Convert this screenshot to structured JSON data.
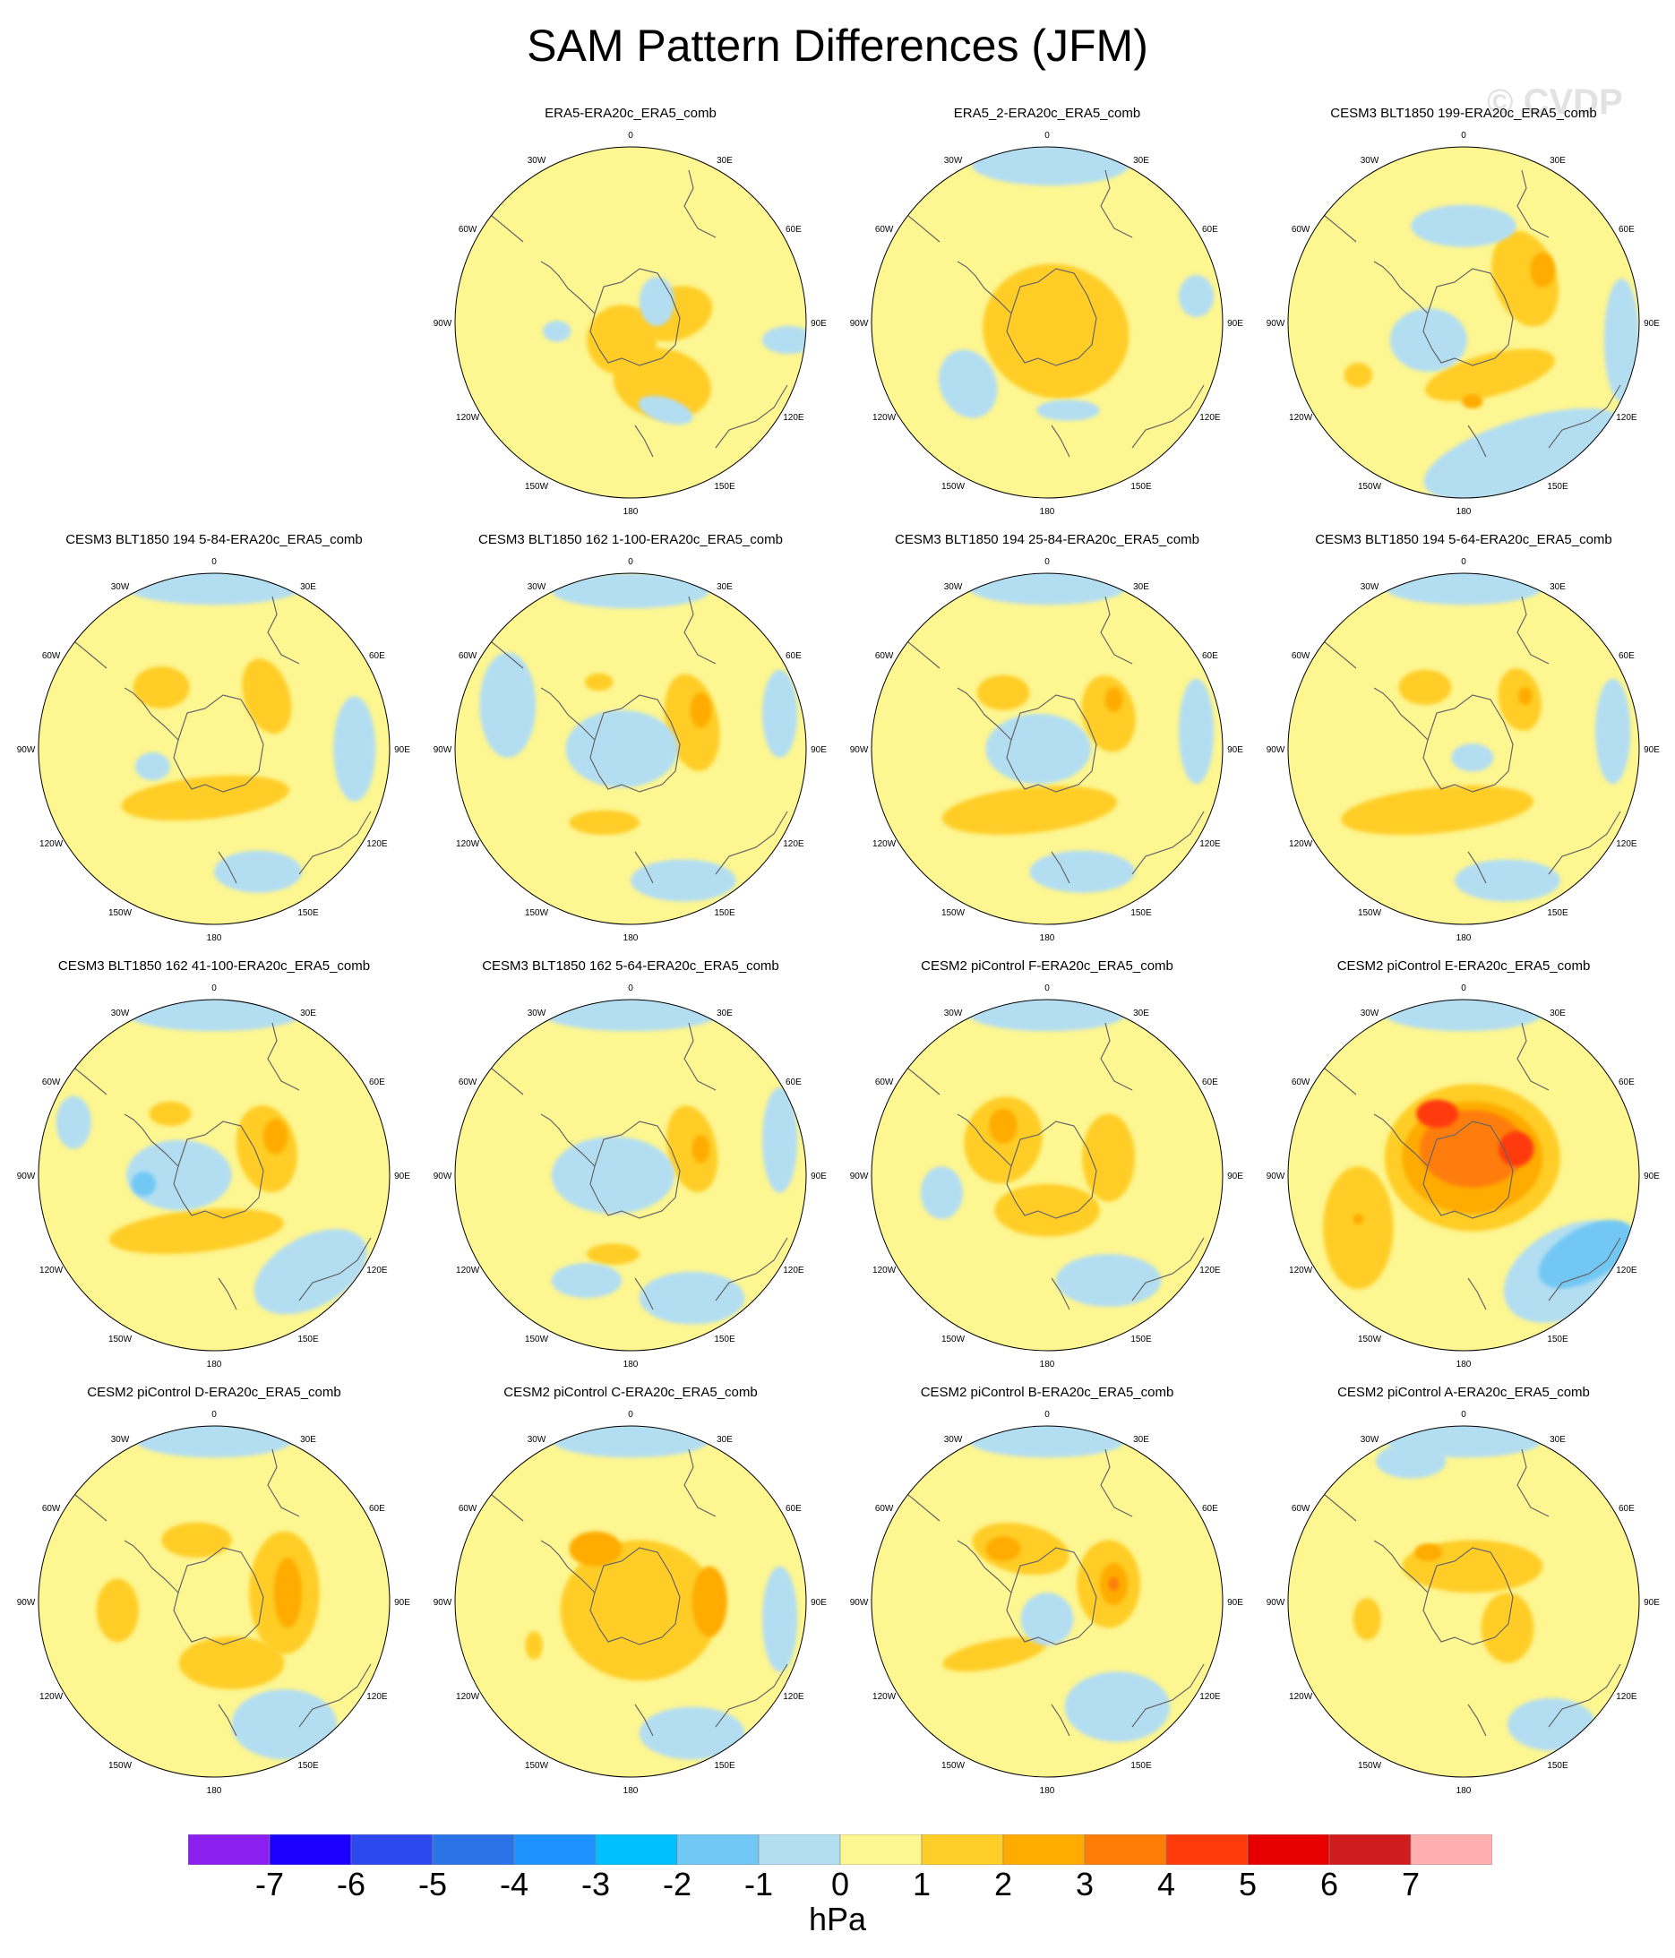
{
  "figure": {
    "title": "SAM Pattern Differences (JFM)",
    "watermark": "© CVDP",
    "units": "hPa"
  },
  "lon_labels": [
    "0",
    "30E",
    "60E",
    "90E",
    "120E",
    "150E",
    "180",
    "150W",
    "120W",
    "90W",
    "60W",
    "30W"
  ],
  "colorbar": {
    "colors": [
      "#8a1ff0",
      "#1b00ff",
      "#2d48ee",
      "#2b74e8",
      "#1e93ff",
      "#00c0ff",
      "#72c8f4",
      "#b3def2",
      "#fdf691",
      "#ffcd28",
      "#ffab00",
      "#ff7d07",
      "#ff3a0a",
      "#e60000",
      "#d01c1c",
      "#ffafaf"
    ],
    "labels": [
      "-7",
      "-6",
      "-5",
      "-4",
      "-3",
      "-2",
      "-1",
      "0",
      "1",
      "2",
      "3",
      "4",
      "5",
      "6",
      "7"
    ]
  },
  "panels": [
    {
      "title": "ERA5-ERA20c_ERA5_comb",
      "blobs": [
        [
          0.25,
          -0.05,
          0.22,
          0.15,
          -0.3,
          1
        ],
        [
          0.18,
          0.35,
          0.28,
          0.2,
          0.2,
          1
        ],
        [
          -0.05,
          0.1,
          0.2,
          0.2,
          0,
          1
        ],
        [
          0.15,
          -0.12,
          0.1,
          0.14,
          0,
          -1
        ],
        [
          -0.42,
          0.05,
          0.08,
          0.06,
          0,
          -1
        ],
        [
          0.2,
          0.5,
          0.16,
          0.07,
          0.3,
          -1
        ],
        [
          0.9,
          0.1,
          0.15,
          0.08,
          0,
          -1
        ]
      ]
    },
    {
      "title": "ERA5_2-ERA20c_ERA5_comb",
      "blobs": [
        [
          0.05,
          0.05,
          0.42,
          0.38,
          0.3,
          1
        ],
        [
          -0.45,
          0.35,
          0.16,
          0.2,
          -0.4,
          -1
        ],
        [
          0.12,
          0.5,
          0.18,
          0.06,
          0,
          -1
        ],
        [
          0.02,
          -0.9,
          0.45,
          0.12,
          0,
          -1
        ],
        [
          0.85,
          -0.15,
          0.1,
          0.12,
          0,
          -1
        ]
      ]
    },
    {
      "title": "CESM3 BLT1850 199-ERA20c_ERA5_comb",
      "blobs": [
        [
          0.35,
          -0.25,
          0.18,
          0.28,
          -0.3,
          1
        ],
        [
          0.45,
          -0.3,
          0.07,
          0.1,
          0,
          2
        ],
        [
          0.15,
          0.3,
          0.38,
          0.12,
          -0.25,
          1
        ],
        [
          0.05,
          0.45,
          0.06,
          0.04,
          0,
          2
        ],
        [
          -0.6,
          0.3,
          0.08,
          0.07,
          0,
          1
        ],
        [
          -0.2,
          0.1,
          0.22,
          0.18,
          0,
          -1
        ],
        [
          0.0,
          -0.55,
          0.3,
          0.12,
          0,
          -1
        ],
        [
          0.35,
          0.75,
          0.6,
          0.2,
          -0.3,
          -1
        ],
        [
          0.9,
          0.1,
          0.1,
          0.35,
          0,
          -1
        ]
      ]
    },
    {
      "title": "CESM3 BLT1850 194 5-84-ERA20c_ERA5_comb",
      "blobs": [
        [
          -0.3,
          -0.35,
          0.16,
          0.12,
          0,
          1
        ],
        [
          0.3,
          -0.3,
          0.13,
          0.22,
          -0.3,
          1
        ],
        [
          -0.05,
          0.28,
          0.48,
          0.12,
          -0.1,
          1
        ],
        [
          -0.35,
          0.1,
          0.1,
          0.08,
          0,
          -1
        ],
        [
          0.0,
          -0.92,
          0.5,
          0.1,
          0,
          -1
        ],
        [
          0.25,
          0.7,
          0.25,
          0.12,
          0,
          -1
        ],
        [
          0.8,
          0.0,
          0.12,
          0.3,
          0,
          -1
        ]
      ]
    },
    {
      "title": "CESM3 BLT1850 162 1-100-ERA20c_ERA5_comb",
      "blobs": [
        [
          0.35,
          -0.15,
          0.15,
          0.28,
          -0.2,
          1
        ],
        [
          0.4,
          -0.22,
          0.06,
          0.1,
          0,
          2
        ],
        [
          -0.18,
          -0.38,
          0.08,
          0.05,
          0,
          1
        ],
        [
          -0.15,
          0.42,
          0.2,
          0.07,
          0,
          1
        ],
        [
          -0.05,
          0.0,
          0.32,
          0.22,
          0,
          -1
        ],
        [
          0.0,
          -0.9,
          0.45,
          0.1,
          0,
          -1
        ],
        [
          -0.7,
          -0.25,
          0.16,
          0.3,
          0,
          -1
        ],
        [
          0.3,
          0.75,
          0.3,
          0.12,
          0,
          -1
        ],
        [
          0.85,
          -0.2,
          0.1,
          0.25,
          0,
          -1
        ]
      ]
    },
    {
      "title": "CESM3 BLT1850 194 25-84-ERA20c_ERA5_comb",
      "blobs": [
        [
          -0.25,
          -0.32,
          0.15,
          0.1,
          0,
          1
        ],
        [
          0.35,
          -0.2,
          0.15,
          0.22,
          -0.2,
          1
        ],
        [
          0.38,
          -0.28,
          0.05,
          0.07,
          0,
          2
        ],
        [
          -0.1,
          0.35,
          0.5,
          0.13,
          -0.1,
          1
        ],
        [
          -0.05,
          0.0,
          0.3,
          0.2,
          0,
          -1
        ],
        [
          0.0,
          -0.92,
          0.45,
          0.1,
          0,
          -1
        ],
        [
          0.2,
          0.7,
          0.3,
          0.12,
          0,
          -1
        ],
        [
          0.85,
          -0.1,
          0.1,
          0.3,
          0,
          -1
        ]
      ]
    },
    {
      "title": "CESM3 BLT1850 194 5-64-ERA20c_ERA5_comb",
      "blobs": [
        [
          -0.22,
          -0.35,
          0.15,
          0.1,
          0,
          1
        ],
        [
          0.32,
          -0.28,
          0.12,
          0.18,
          -0.2,
          1
        ],
        [
          0.35,
          -0.3,
          0.04,
          0.05,
          0,
          2
        ],
        [
          -0.15,
          0.35,
          0.55,
          0.13,
          -0.1,
          1
        ],
        [
          0.05,
          0.05,
          0.12,
          0.08,
          0,
          -1
        ],
        [
          0.0,
          -0.92,
          0.45,
          0.1,
          0,
          -1
        ],
        [
          0.25,
          0.75,
          0.3,
          0.12,
          0,
          -1
        ],
        [
          0.85,
          -0.1,
          0.1,
          0.3,
          0,
          -1
        ]
      ]
    },
    {
      "title": "CESM3 BLT1850 162 41-100-ERA20c_ERA5_comb",
      "blobs": [
        [
          0.3,
          -0.15,
          0.17,
          0.25,
          -0.2,
          1
        ],
        [
          0.35,
          -0.22,
          0.07,
          0.1,
          0,
          2
        ],
        [
          -0.1,
          0.32,
          0.5,
          0.12,
          -0.1,
          1
        ],
        [
          -0.25,
          -0.35,
          0.12,
          0.07,
          0,
          1
        ],
        [
          -0.2,
          0.0,
          0.3,
          0.2,
          0,
          -1
        ],
        [
          -0.4,
          0.05,
          0.07,
          0.07,
          0,
          -2
        ],
        [
          0.0,
          -0.92,
          0.5,
          0.1,
          0,
          -1
        ],
        [
          0.55,
          0.55,
          0.35,
          0.2,
          -0.5,
          -1
        ],
        [
          -0.8,
          -0.3,
          0.1,
          0.15,
          0,
          -1
        ]
      ]
    },
    {
      "title": "CESM3 BLT1850 162 5-64-ERA20c_ERA5_comb",
      "blobs": [
        [
          0.35,
          -0.15,
          0.14,
          0.25,
          -0.2,
          1
        ],
        [
          0.4,
          -0.15,
          0.05,
          0.08,
          0,
          2
        ],
        [
          -0.1,
          0.45,
          0.15,
          0.06,
          0,
          1
        ],
        [
          -0.1,
          0.0,
          0.35,
          0.22,
          0,
          -1
        ],
        [
          0.0,
          -0.92,
          0.5,
          0.1,
          0,
          -1
        ],
        [
          -0.25,
          0.6,
          0.2,
          0.1,
          0,
          -1
        ],
        [
          0.35,
          0.7,
          0.3,
          0.15,
          0,
          -1
        ],
        [
          0.85,
          -0.2,
          0.1,
          0.3,
          0,
          -1
        ]
      ]
    },
    {
      "title": "CESM2 piControl F-ERA20c_ERA5_comb",
      "blobs": [
        [
          -0.25,
          -0.2,
          0.22,
          0.25,
          0.3,
          1
        ],
        [
          -0.25,
          -0.28,
          0.08,
          0.1,
          0,
          2
        ],
        [
          0.35,
          -0.1,
          0.15,
          0.25,
          0,
          1
        ],
        [
          0.0,
          0.2,
          0.3,
          0.15,
          0,
          1
        ],
        [
          -0.6,
          0.1,
          0.12,
          0.15,
          0,
          -1
        ],
        [
          0.35,
          0.6,
          0.3,
          0.15,
          0,
          -1
        ],
        [
          0.0,
          -0.92,
          0.45,
          0.1,
          0,
          -1
        ]
      ]
    },
    {
      "title": "CESM2 piControl E-ERA20c_ERA5_comb",
      "blobs": [
        [
          0.05,
          -0.1,
          0.5,
          0.42,
          0,
          1
        ],
        [
          0.05,
          -0.1,
          0.4,
          0.32,
          0,
          2
        ],
        [
          0.05,
          -0.15,
          0.3,
          0.22,
          0,
          3
        ],
        [
          -0.15,
          -0.35,
          0.12,
          0.08,
          0,
          4
        ],
        [
          0.3,
          -0.15,
          0.1,
          0.1,
          0,
          4
        ],
        [
          -0.6,
          0.3,
          0.2,
          0.35,
          0,
          1
        ],
        [
          -0.6,
          0.25,
          0.03,
          0.03,
          0,
          2
        ],
        [
          0.6,
          0.55,
          0.4,
          0.25,
          -0.5,
          -1
        ],
        [
          0.7,
          0.45,
          0.3,
          0.15,
          -0.5,
          -2
        ],
        [
          0.0,
          -0.92,
          0.45,
          0.1,
          0,
          -1
        ]
      ]
    },
    {
      "title": "CESM2 piControl D-ERA20c_ERA5_comb",
      "blobs": [
        [
          0.4,
          -0.05,
          0.2,
          0.35,
          0,
          1
        ],
        [
          0.42,
          -0.05,
          0.08,
          0.2,
          0,
          2
        ],
        [
          -0.1,
          -0.35,
          0.2,
          0.1,
          0,
          1
        ],
        [
          0.1,
          0.35,
          0.3,
          0.15,
          0,
          1
        ],
        [
          -0.55,
          0.05,
          0.12,
          0.18,
          0,
          1
        ],
        [
          0.4,
          0.7,
          0.3,
          0.2,
          0,
          -1
        ],
        [
          0.0,
          -0.92,
          0.45,
          0.1,
          0,
          -1
        ]
      ]
    },
    {
      "title": "CESM2 piControl C-ERA20c_ERA5_comb",
      "blobs": [
        [
          0.05,
          0.05,
          0.45,
          0.4,
          0,
          1
        ],
        [
          -0.2,
          -0.3,
          0.15,
          0.1,
          0,
          2
        ],
        [
          0.45,
          0.0,
          0.1,
          0.2,
          0,
          2
        ],
        [
          -0.55,
          0.25,
          0.05,
          0.08,
          0,
          1
        ],
        [
          0.35,
          0.75,
          0.3,
          0.15,
          0,
          -1
        ],
        [
          0.85,
          0.1,
          0.1,
          0.3,
          0,
          -1
        ],
        [
          0.0,
          -0.92,
          0.45,
          0.1,
          0,
          -1
        ]
      ]
    },
    {
      "title": "CESM2 piControl B-ERA20c_ERA5_comb",
      "blobs": [
        [
          -0.15,
          -0.3,
          0.28,
          0.14,
          0.2,
          1
        ],
        [
          -0.25,
          -0.3,
          0.1,
          0.07,
          0,
          2
        ],
        [
          0.35,
          -0.1,
          0.18,
          0.25,
          0,
          1
        ],
        [
          0.38,
          -0.1,
          0.08,
          0.12,
          0,
          2
        ],
        [
          0.38,
          -0.1,
          0.03,
          0.04,
          0,
          3
        ],
        [
          -0.3,
          0.3,
          0.3,
          0.08,
          -0.2,
          1
        ],
        [
          0.0,
          0.1,
          0.15,
          0.15,
          0,
          -1
        ],
        [
          0.4,
          0.6,
          0.3,
          0.2,
          0,
          -1
        ],
        [
          0.0,
          -0.92,
          0.45,
          0.1,
          0,
          -1
        ]
      ]
    },
    {
      "title": "CESM2 piControl A-ERA20c_ERA5_comb",
      "blobs": [
        [
          0.05,
          -0.2,
          0.4,
          0.15,
          0,
          1
        ],
        [
          -0.2,
          -0.28,
          0.08,
          0.05,
          0,
          2
        ],
        [
          0.25,
          0.15,
          0.15,
          0.2,
          0,
          1
        ],
        [
          -0.55,
          0.1,
          0.08,
          0.12,
          0,
          1
        ],
        [
          0.5,
          0.7,
          0.25,
          0.15,
          0,
          -1
        ],
        [
          -0.3,
          -0.8,
          0.2,
          0.1,
          0,
          -1
        ],
        [
          0.0,
          -0.92,
          0.45,
          0.1,
          0,
          -1
        ]
      ]
    }
  ]
}
